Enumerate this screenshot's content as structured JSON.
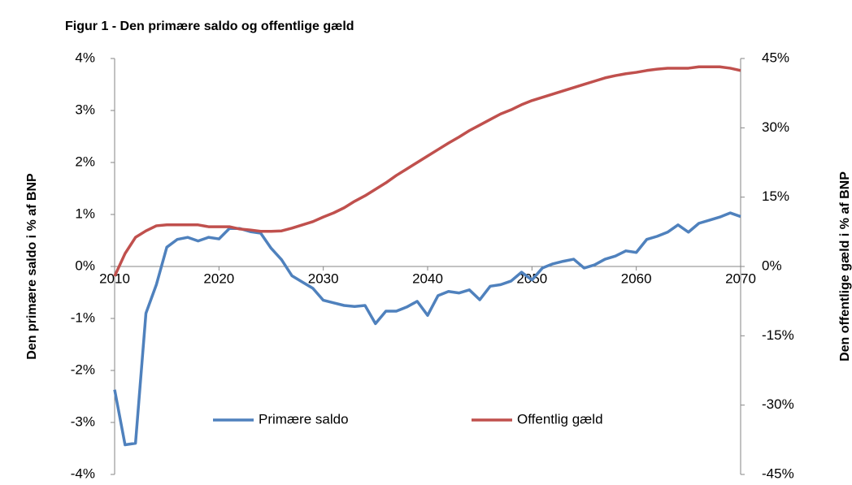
{
  "chart_data": {
    "type": "line",
    "title": "Figur 1 - Den primære saldo og offentlige gæld",
    "ylabel": "Den primære saldo  i % af BNP",
    "y2label": "Den offentlige gæld i % af BNP",
    "x": [
      2010,
      2011,
      2012,
      2013,
      2014,
      2015,
      2016,
      2017,
      2018,
      2019,
      2020,
      2021,
      2022,
      2023,
      2024,
      2025,
      2026,
      2027,
      2028,
      2029,
      2030,
      2031,
      2032,
      2033,
      2034,
      2035,
      2036,
      2037,
      2038,
      2039,
      2040,
      2041,
      2042,
      2043,
      2044,
      2045,
      2046,
      2047,
      2048,
      2049,
      2050,
      2051,
      2052,
      2053,
      2054,
      2055,
      2056,
      2057,
      2058,
      2059,
      2060,
      2061,
      2062,
      2063,
      2064,
      2065,
      2066,
      2067,
      2068,
      2069,
      2070
    ],
    "xlim": [
      2010,
      2070
    ],
    "xticks": [
      2010,
      2020,
      2030,
      2040,
      2050,
      2060,
      2070
    ],
    "ylim": [
      -4,
      4
    ],
    "yticks": [
      {
        "value": -4,
        "label": "-4%"
      },
      {
        "value": -3,
        "label": "-3%"
      },
      {
        "value": -2,
        "label": "-2%"
      },
      {
        "value": -1,
        "label": "-1%"
      },
      {
        "value": 0,
        "label": "0%"
      },
      {
        "value": 1,
        "label": "1%"
      },
      {
        "value": 2,
        "label": "2%"
      },
      {
        "value": 3,
        "label": "3%"
      },
      {
        "value": 4,
        "label": "4%"
      }
    ],
    "y2lim": [
      -45,
      45
    ],
    "y2ticks": [
      {
        "value": -45,
        "label": "-45%"
      },
      {
        "value": -30,
        "label": "-30%"
      },
      {
        "value": -15,
        "label": "-15%"
      },
      {
        "value": 0,
        "label": "0%"
      },
      {
        "value": 15,
        "label": "15%"
      },
      {
        "value": 30,
        "label": "30%"
      },
      {
        "value": 45,
        "label": "45%"
      }
    ],
    "legend": "bottom",
    "series": [
      {
        "name": "Primære saldo",
        "color": "#4f81bd",
        "values": [
          -2.37,
          -3.43,
          -3.4,
          -0.9,
          -0.35,
          0.37,
          0.52,
          0.56,
          0.49,
          0.56,
          0.53,
          0.73,
          0.73,
          0.67,
          0.64,
          0.35,
          0.13,
          -0.18,
          -0.3,
          -0.42,
          -0.65,
          -0.7,
          -0.75,
          -0.77,
          -0.75,
          -1.1,
          -0.86,
          -0.86,
          -0.78,
          -0.67,
          -0.94,
          -0.56,
          -0.48,
          -0.51,
          -0.45,
          -0.64,
          -0.38,
          -0.35,
          -0.28,
          -0.11,
          -0.26,
          -0.03,
          0.05,
          0.1,
          0.14,
          -0.03,
          0.03,
          0.14,
          0.2,
          0.3,
          0.27,
          0.52,
          0.58,
          0.66,
          0.8,
          0.66,
          0.83,
          0.89,
          0.95,
          1.03,
          0.96
        ]
      },
      {
        "name": "Offentlig gæld",
        "color": "#c0504d",
        "axis": "y2",
        "values": [
          -2.1,
          2.8,
          6.3,
          7.7,
          8.8,
          9.0,
          9.0,
          9.0,
          9.0,
          8.6,
          8.6,
          8.6,
          8.1,
          7.9,
          7.6,
          7.6,
          7.7,
          8.3,
          9.0,
          9.7,
          10.7,
          11.6,
          12.7,
          14.1,
          15.3,
          16.7,
          18.1,
          19.7,
          21.1,
          22.5,
          23.9,
          25.3,
          26.7,
          28.0,
          29.4,
          30.6,
          31.8,
          33.0,
          33.9,
          35.0,
          35.9,
          36.6,
          37.3,
          38.0,
          38.7,
          39.4,
          40.1,
          40.8,
          41.3,
          41.7,
          42.0,
          42.4,
          42.7,
          42.9,
          42.9,
          42.9,
          43.2,
          43.2,
          43.2,
          42.9,
          42.4
        ]
      }
    ]
  }
}
